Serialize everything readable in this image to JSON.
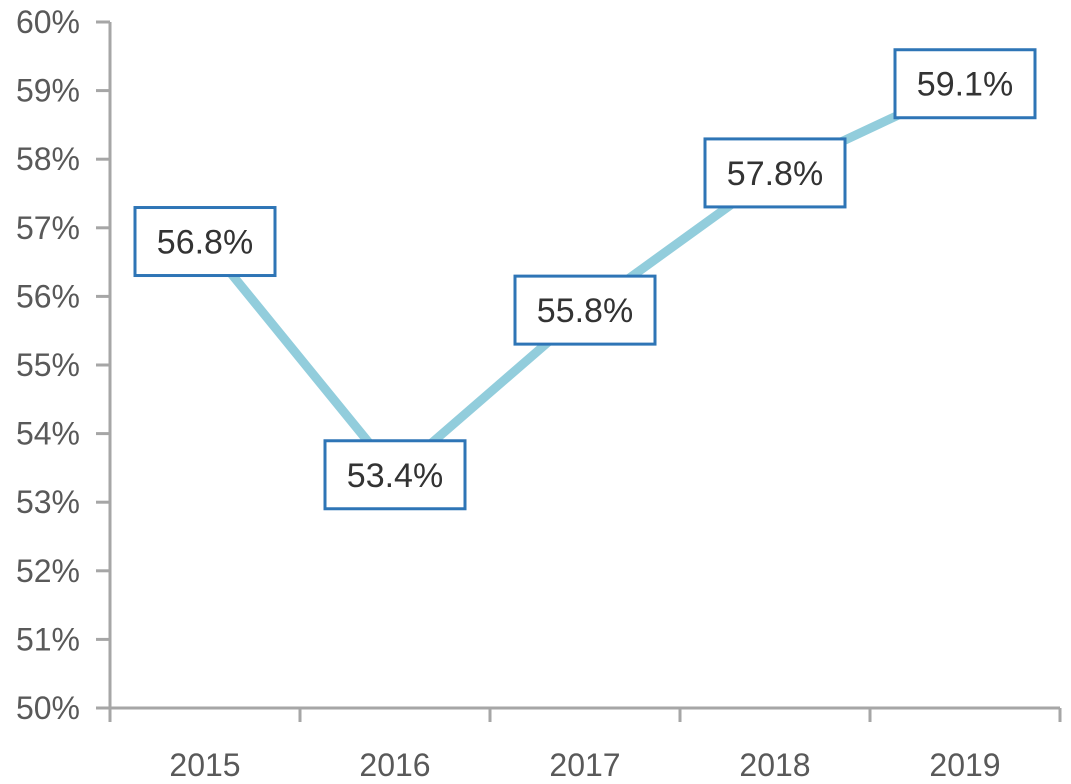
{
  "chart_data": {
    "type": "line",
    "title": "",
    "xlabel": "",
    "ylabel": "",
    "categories": [
      "2015",
      "2016",
      "2017",
      "2018",
      "2019"
    ],
    "series": [
      {
        "values": [
          56.8,
          53.4,
          55.8,
          57.8,
          59.1
        ],
        "labels": [
          "56.8%",
          "53.4%",
          "55.8%",
          "57.8%",
          "59.1%"
        ]
      }
    ],
    "ylim": [
      50,
      60
    ],
    "yticks": [
      "50%",
      "51%",
      "52%",
      "53%",
      "54%",
      "55%",
      "56%",
      "57%",
      "58%",
      "59%",
      "60%"
    ],
    "grid": false,
    "legend": "none",
    "colors": {
      "line": "#92CDDC",
      "axis": "#A6A6A6",
      "label_border": "#2E75B6",
      "tick_text": "#595959",
      "label_text": "#333333"
    }
  }
}
